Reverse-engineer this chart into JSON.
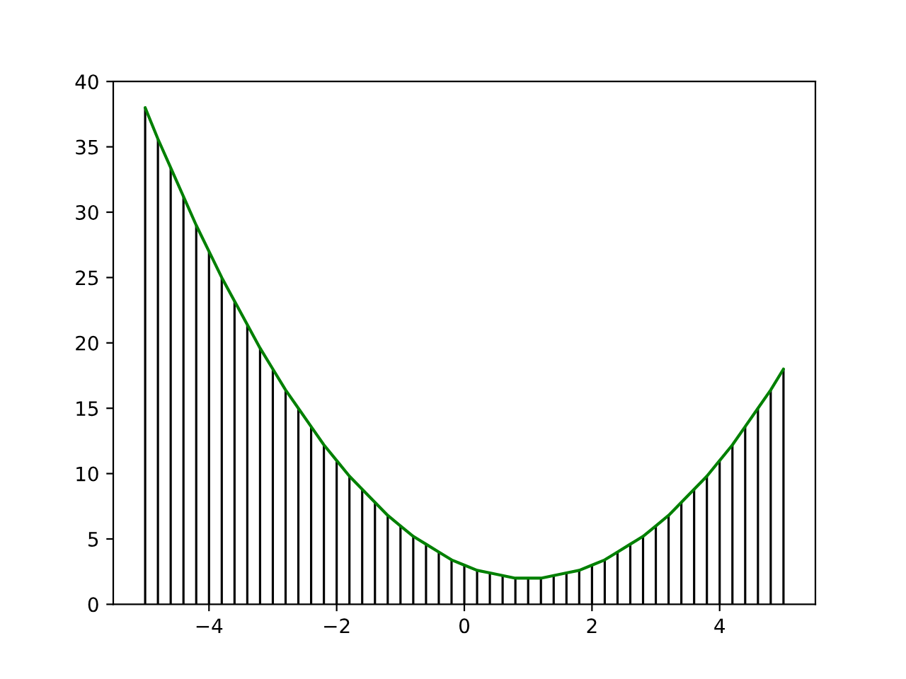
{
  "chart_data": {
    "type": "bar",
    "x": [
      -5,
      -4.8,
      -4.6,
      -4.4,
      -4.2,
      -4,
      -3.8,
      -3.6,
      -3.4,
      -3.2,
      -3,
      -2.8,
      -2.6,
      -2.4,
      -2.2,
      -2,
      -1.8,
      -1.6,
      -1.4,
      -1.2,
      -1,
      -0.8,
      -0.6,
      -0.4,
      -0.2,
      0,
      0.2,
      0.4,
      0.6,
      0.8,
      1,
      1.2,
      1.4,
      1.6,
      1.8,
      2,
      2.2,
      2.4,
      2.6,
      2.8,
      3,
      3.2,
      3.4,
      3.6,
      3.8,
      4,
      4.2,
      4.4,
      4.6,
      4.8,
      5
    ],
    "series": [
      {
        "color": "#000000",
        "values": [
          38,
          35.6,
          33.4,
          31.2,
          29.0,
          27,
          25.0,
          23.2,
          21.4,
          19.6,
          18,
          16.4,
          15.0,
          13.6,
          12.2,
          11,
          9.8,
          8.8,
          7.8,
          6.8,
          6,
          5.2,
          4.6,
          4.0,
          3.4,
          3,
          2.6,
          2.4,
          2.2,
          2.0,
          2,
          2.0,
          2.2,
          2.4,
          2.6,
          3,
          3.4,
          4.0,
          4.6,
          5.2,
          6,
          6.8,
          7.8,
          8.8,
          9.8,
          11,
          12.2,
          13.6,
          15.0,
          16.4,
          18
        ]
      },
      {
        "type": "line",
        "color": "#008000",
        "values": [
          38,
          35.6,
          33.4,
          31.2,
          29.0,
          27,
          25.0,
          23.2,
          21.4,
          19.6,
          18,
          16.4,
          15.0,
          13.6,
          12.2,
          11,
          9.8,
          8.8,
          7.8,
          6.8,
          6,
          5.2,
          4.6,
          4.0,
          3.4,
          3,
          2.6,
          2.4,
          2.2,
          2.0,
          2,
          2.0,
          2.2,
          2.4,
          2.6,
          3,
          3.4,
          4.0,
          4.6,
          5.2,
          6,
          6.8,
          7.8,
          8.8,
          9.8,
          11,
          12.2,
          13.6,
          15.0,
          16.4,
          18
        ]
      }
    ],
    "xlim": [
      -5.5,
      5.5
    ],
    "xticks": [
      {
        "value": -4,
        "label": "−4"
      },
      {
        "value": -2,
        "label": "−2"
      },
      0,
      2,
      4
    ],
    "ylim": [
      0,
      40
    ],
    "yticks": [
      0,
      5,
      10,
      15,
      20,
      25,
      30,
      35,
      40
    ]
  }
}
